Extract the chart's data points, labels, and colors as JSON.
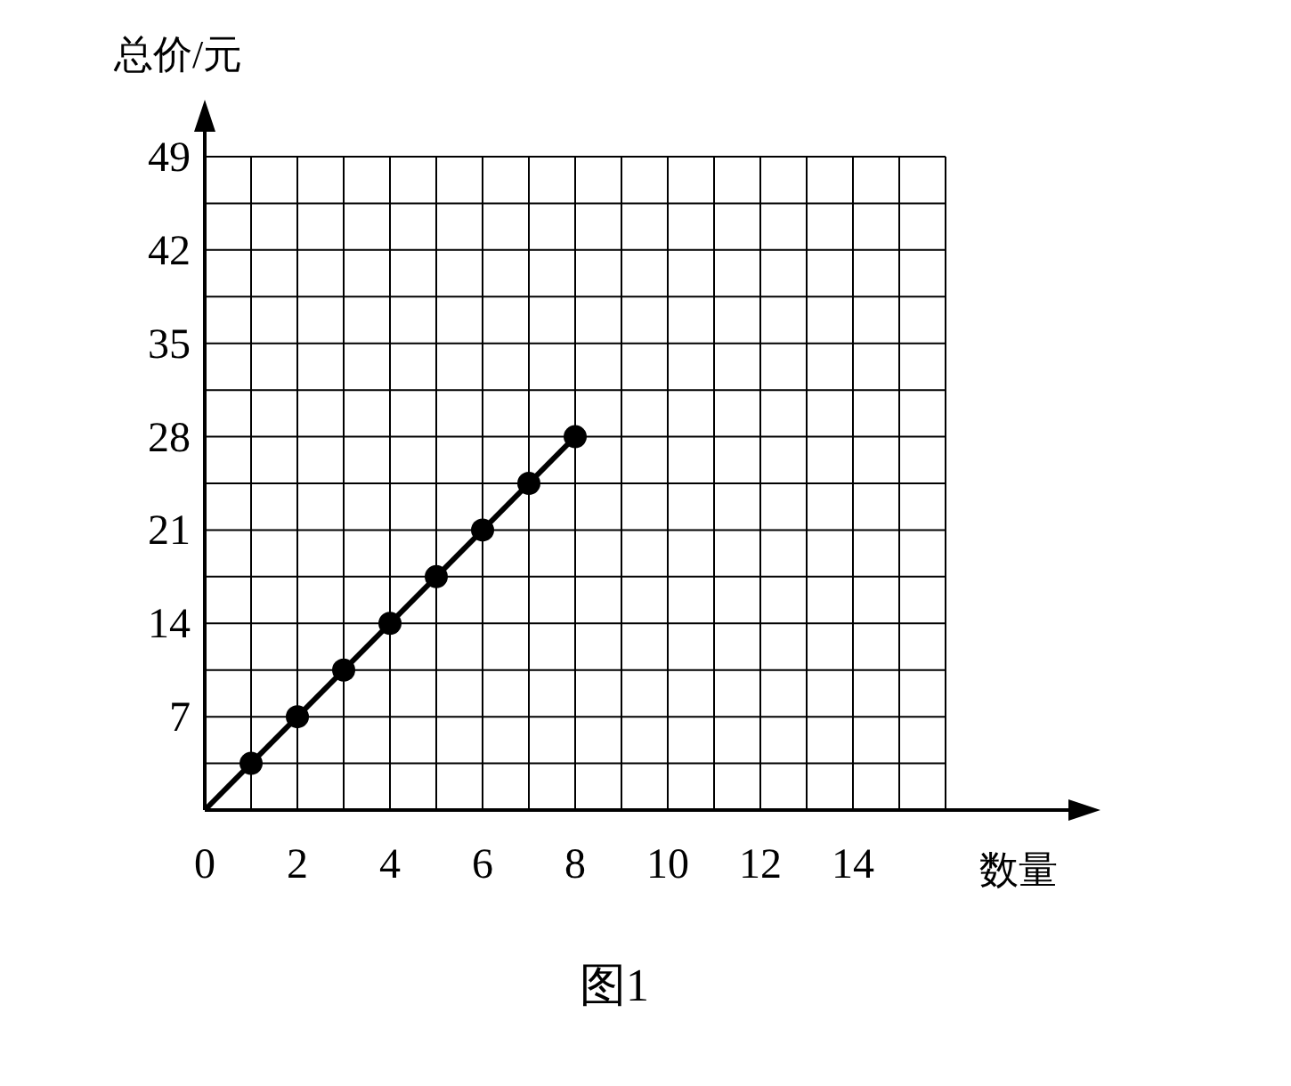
{
  "chart_data": {
    "type": "line",
    "title": "图1",
    "xlabel": "数量",
    "ylabel": "总价/元",
    "xlim": [
      0,
      16
    ],
    "ylim": [
      0,
      49
    ],
    "xticks": [
      0,
      {
        "value": 1,
        "label": null
      },
      2,
      {
        "value": 3,
        "label": null
      },
      4,
      {
        "value": 5,
        "label": null
      },
      6,
      {
        "value": 7,
        "label": null
      },
      8,
      {
        "value": 9,
        "label": null
      },
      10,
      {
        "value": 11,
        "label": null
      },
      12,
      {
        "value": 13,
        "label": null
      },
      14,
      {
        "value": 15,
        "label": null
      },
      {
        "value": 16,
        "label": null
      }
    ],
    "yticks": [
      {
        "value": 3.5,
        "label": null
      },
      7,
      {
        "value": 10.5,
        "label": null
      },
      14,
      {
        "value": 17.5,
        "label": null
      },
      21,
      {
        "value": 24.5,
        "label": null
      },
      28,
      {
        "value": 31.5,
        "label": null
      },
      35,
      {
        "value": 38.5,
        "label": null
      },
      42,
      {
        "value": 45.5,
        "label": null
      },
      49
    ],
    "grid": true,
    "series": [
      {
        "color": "#000000",
        "marker": "none",
        "x": [
          0,
          8
        ],
        "values": [
          0,
          28
        ]
      },
      {
        "type": "scatter",
        "color": "#000000",
        "marker": "circle",
        "x": [
          1,
          2,
          3,
          4,
          5,
          6,
          7,
          8
        ],
        "values": [
          3.5,
          7,
          10.5,
          14,
          17.5,
          21,
          24.5,
          28
        ]
      }
    ]
  }
}
